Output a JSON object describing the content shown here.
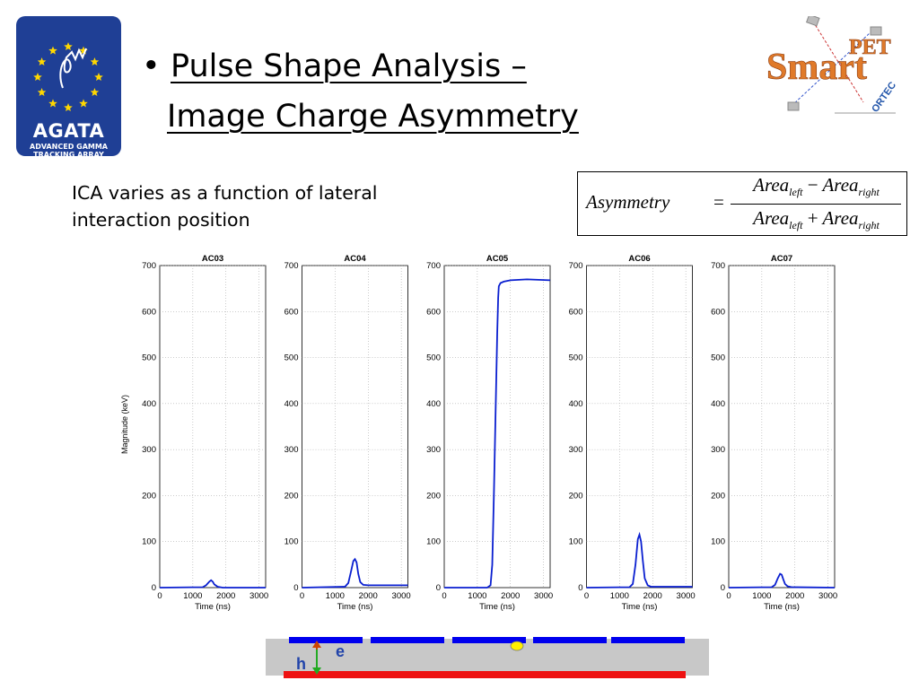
{
  "logos": {
    "agata": {
      "name": "AGATA",
      "subtitle_lines": [
        "ADVANCED GAMMA",
        "TRACKING ARRAY"
      ]
    },
    "smartpet": {
      "text_main": "Smart",
      "text_sup": "PET",
      "text_brand": "ORTEC"
    }
  },
  "title": {
    "bullet": "•",
    "line1": "Pulse Shape Analysis –",
    "line2": "Image Charge Asymmetry"
  },
  "description": {
    "line1": "ICA varies as a function of lateral",
    "line2": "interaction position"
  },
  "formula": {
    "lhs": "Asymmetry",
    "equals": "=",
    "term": "Area",
    "left_sub": "left",
    "right_sub": "right",
    "minus": "−",
    "plus": "+"
  },
  "colors": {
    "curve": "#0a1fd0",
    "segment": "#0000ee",
    "bottom_contact": "#ee1111",
    "crystal": "#c8c8c8",
    "electron_arrow": "#cc4400",
    "hole_arrow": "#22aa22",
    "agata_blue": "#1f3f95",
    "star": "#ffd700"
  },
  "chart_data": [
    {
      "type": "line",
      "title": "AC03",
      "ylabel": "Magnitude (keV)",
      "xlabel": "Time (ns)",
      "xlim": [
        0,
        3200
      ],
      "ylim": [
        0,
        700
      ],
      "xticks": [
        0,
        1000,
        2000,
        3000
      ],
      "yticks": [
        0,
        100,
        200,
        300,
        400,
        500,
        600,
        700
      ],
      "grid": true,
      "series": [
        {
          "x": [
            0,
            1300,
            1400,
            1500,
            1550,
            1600,
            1650,
            1750,
            1900,
            3200
          ],
          "y": [
            0,
            1,
            5,
            13,
            16,
            13,
            7,
            2,
            0,
            0
          ]
        }
      ]
    },
    {
      "type": "line",
      "title": "AC04",
      "xlabel": "Time (ns)",
      "xlim": [
        0,
        3200
      ],
      "ylim": [
        0,
        700
      ],
      "xticks": [
        0,
        1000,
        2000,
        3000
      ],
      "yticks": [
        0,
        100,
        200,
        300,
        400,
        500,
        600,
        700
      ],
      "grid": true,
      "series": [
        {
          "x": [
            0,
            1300,
            1400,
            1480,
            1550,
            1600,
            1650,
            1700,
            1760,
            1850,
            2000,
            3200
          ],
          "y": [
            0,
            2,
            10,
            35,
            58,
            62,
            55,
            30,
            12,
            6,
            5,
            5
          ]
        }
      ]
    },
    {
      "type": "line",
      "title": "AC05",
      "xlabel": "Time (ns)",
      "xlim": [
        0,
        3200
      ],
      "ylim": [
        0,
        700
      ],
      "xticks": [
        0,
        1000,
        2000,
        3000
      ],
      "yticks": [
        0,
        100,
        200,
        300,
        400,
        500,
        600,
        700
      ],
      "grid": true,
      "series": [
        {
          "x": [
            0,
            1300,
            1400,
            1450,
            1500,
            1550,
            1600,
            1630,
            1650,
            1700,
            1800,
            2000,
            2500,
            3200
          ],
          "y": [
            0,
            0,
            5,
            50,
            200,
            380,
            550,
            630,
            655,
            662,
            665,
            668,
            670,
            668
          ]
        }
      ]
    },
    {
      "type": "line",
      "title": "AC06",
      "xlabel": "Time (ns)",
      "xlim": [
        0,
        3200
      ],
      "ylim": [
        0,
        700
      ],
      "xticks": [
        0,
        1000,
        2000,
        3000
      ],
      "yticks": [
        0,
        100,
        200,
        300,
        400,
        500,
        600,
        700
      ],
      "grid": true,
      "series": [
        {
          "x": [
            0,
            1300,
            1400,
            1480,
            1550,
            1600,
            1650,
            1700,
            1760,
            1850,
            1950,
            3200
          ],
          "y": [
            0,
            1,
            8,
            50,
            105,
            115,
            100,
            60,
            20,
            5,
            2,
            2
          ]
        }
      ]
    },
    {
      "type": "line",
      "title": "AC07",
      "xlabel": "Time (ns)",
      "xlim": [
        0,
        3200
      ],
      "ylim": [
        0,
        700
      ],
      "xticks": [
        0,
        1000,
        2000,
        3000
      ],
      "yticks": [
        0,
        100,
        200,
        300,
        400,
        500,
        600,
        700
      ],
      "grid": true,
      "series": [
        {
          "x": [
            0,
            1300,
            1400,
            1480,
            1550,
            1600,
            1650,
            1700,
            1780,
            1900,
            3200
          ],
          "y": [
            0,
            1,
            6,
            20,
            30,
            28,
            18,
            8,
            3,
            1,
            0
          ]
        }
      ]
    }
  ],
  "detector": {
    "label_e": "e",
    "label_h": "h",
    "segment_count": 5
  }
}
